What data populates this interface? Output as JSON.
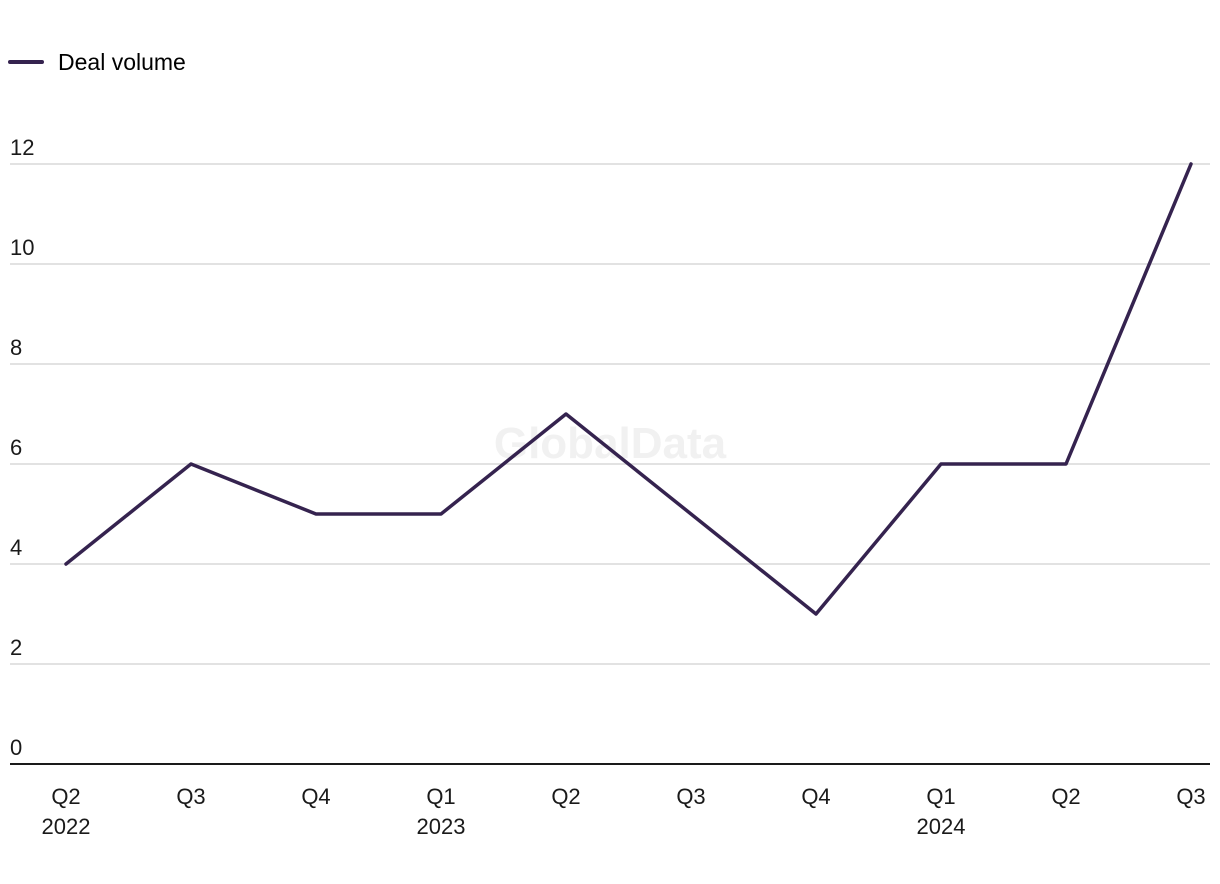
{
  "chart_data": {
    "type": "line",
    "legend": {
      "placement": "top-left"
    },
    "watermark": "GlobalData",
    "categories": [
      "Q2\n2022",
      "Q3",
      "Q4",
      "Q1\n2023",
      "Q2",
      "Q3",
      "Q4",
      "Q1\n2024",
      "Q2",
      "Q3"
    ],
    "series": [
      {
        "name": "Deal volume",
        "color": "#35234f",
        "values": [
          4,
          6,
          5,
          5,
          7,
          5,
          3,
          6,
          6,
          12
        ]
      }
    ],
    "yticks": [
      0,
      2,
      4,
      6,
      8,
      10,
      12
    ],
    "ylim": [
      0,
      12
    ],
    "grid": true,
    "colors": {
      "line": "#35234f",
      "grid": "#d9d9d9",
      "axis": "#1a1a1a"
    }
  }
}
